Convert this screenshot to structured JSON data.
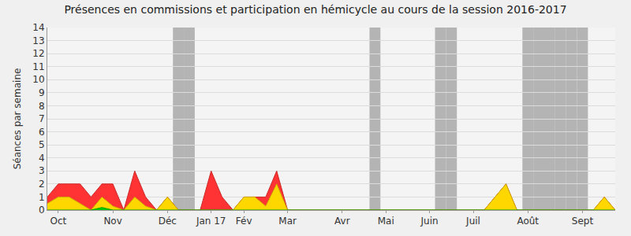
{
  "chart_data": {
    "type": "area",
    "title": "Présences en commissions et participation en hémicycle au cours de la session 2016-2017",
    "y_label": "Séances par semaine",
    "categories": [
      null,
      "Oct",
      null,
      null,
      null,
      null,
      "Nov",
      null,
      null,
      null,
      null,
      "Déc",
      null,
      null,
      null,
      "Jan 17",
      null,
      null,
      "Fév",
      null,
      null,
      null,
      "Mar",
      null,
      null,
      null,
      null,
      "Avr",
      null,
      null,
      null,
      "Mai",
      null,
      null,
      null,
      "Juin",
      null,
      null,
      null,
      "Juil",
      null,
      null,
      null,
      null,
      "Août",
      null,
      null,
      null,
      null,
      "Sept",
      null,
      null,
      null
    ],
    "series": [
      {
        "color": "#ff3333",
        "values": [
          1,
          2,
          2,
          2,
          1,
          2,
          2,
          0,
          3,
          1,
          0,
          1,
          0,
          0,
          0,
          3,
          1,
          0,
          1,
          1,
          1,
          3,
          0,
          0,
          0,
          0,
          0,
          0,
          0,
          0,
          0,
          0,
          0,
          0,
          0,
          0,
          0,
          0,
          0,
          0,
          0,
          1,
          2,
          0,
          0,
          0,
          0,
          0,
          0,
          0,
          0,
          1,
          0
        ]
      },
      {
        "color": "#ffd700",
        "values": [
          0.5,
          1,
          1,
          0.5,
          0,
          1,
          0.3,
          0,
          1,
          0.3,
          0,
          1,
          0,
          0,
          0,
          0,
          0,
          0,
          1,
          1,
          0.3,
          2,
          0,
          0,
          0,
          0,
          0,
          0,
          0,
          0,
          0,
          0,
          0,
          0,
          0,
          0,
          0,
          0,
          0,
          0,
          0,
          1,
          2,
          0,
          0,
          0,
          0,
          0,
          0,
          0,
          0,
          1,
          0
        ]
      },
      {
        "color": "#00cc00",
        "values": [
          0,
          0,
          0,
          0,
          0,
          0.2,
          0,
          0,
          0,
          0,
          0,
          0,
          0,
          0,
          0,
          0,
          0,
          0,
          0,
          0,
          0,
          0,
          0,
          0,
          0,
          0,
          0,
          0,
          0,
          0,
          0,
          0,
          0,
          0,
          0,
          0,
          0,
          0,
          0,
          0,
          0,
          0,
          0,
          0,
          0,
          0,
          0,
          0,
          0,
          0,
          0,
          0,
          0
        ]
      }
    ],
    "shaded_weeks": [
      12,
      13,
      30,
      36,
      37,
      44,
      45,
      46,
      47,
      48,
      49
    ],
    "ylim": [
      0,
      14
    ],
    "yticks": [
      0,
      1,
      2,
      3,
      4,
      5,
      6,
      7,
      8,
      9,
      10,
      11,
      12,
      13,
      14
    ],
    "grid": true
  }
}
